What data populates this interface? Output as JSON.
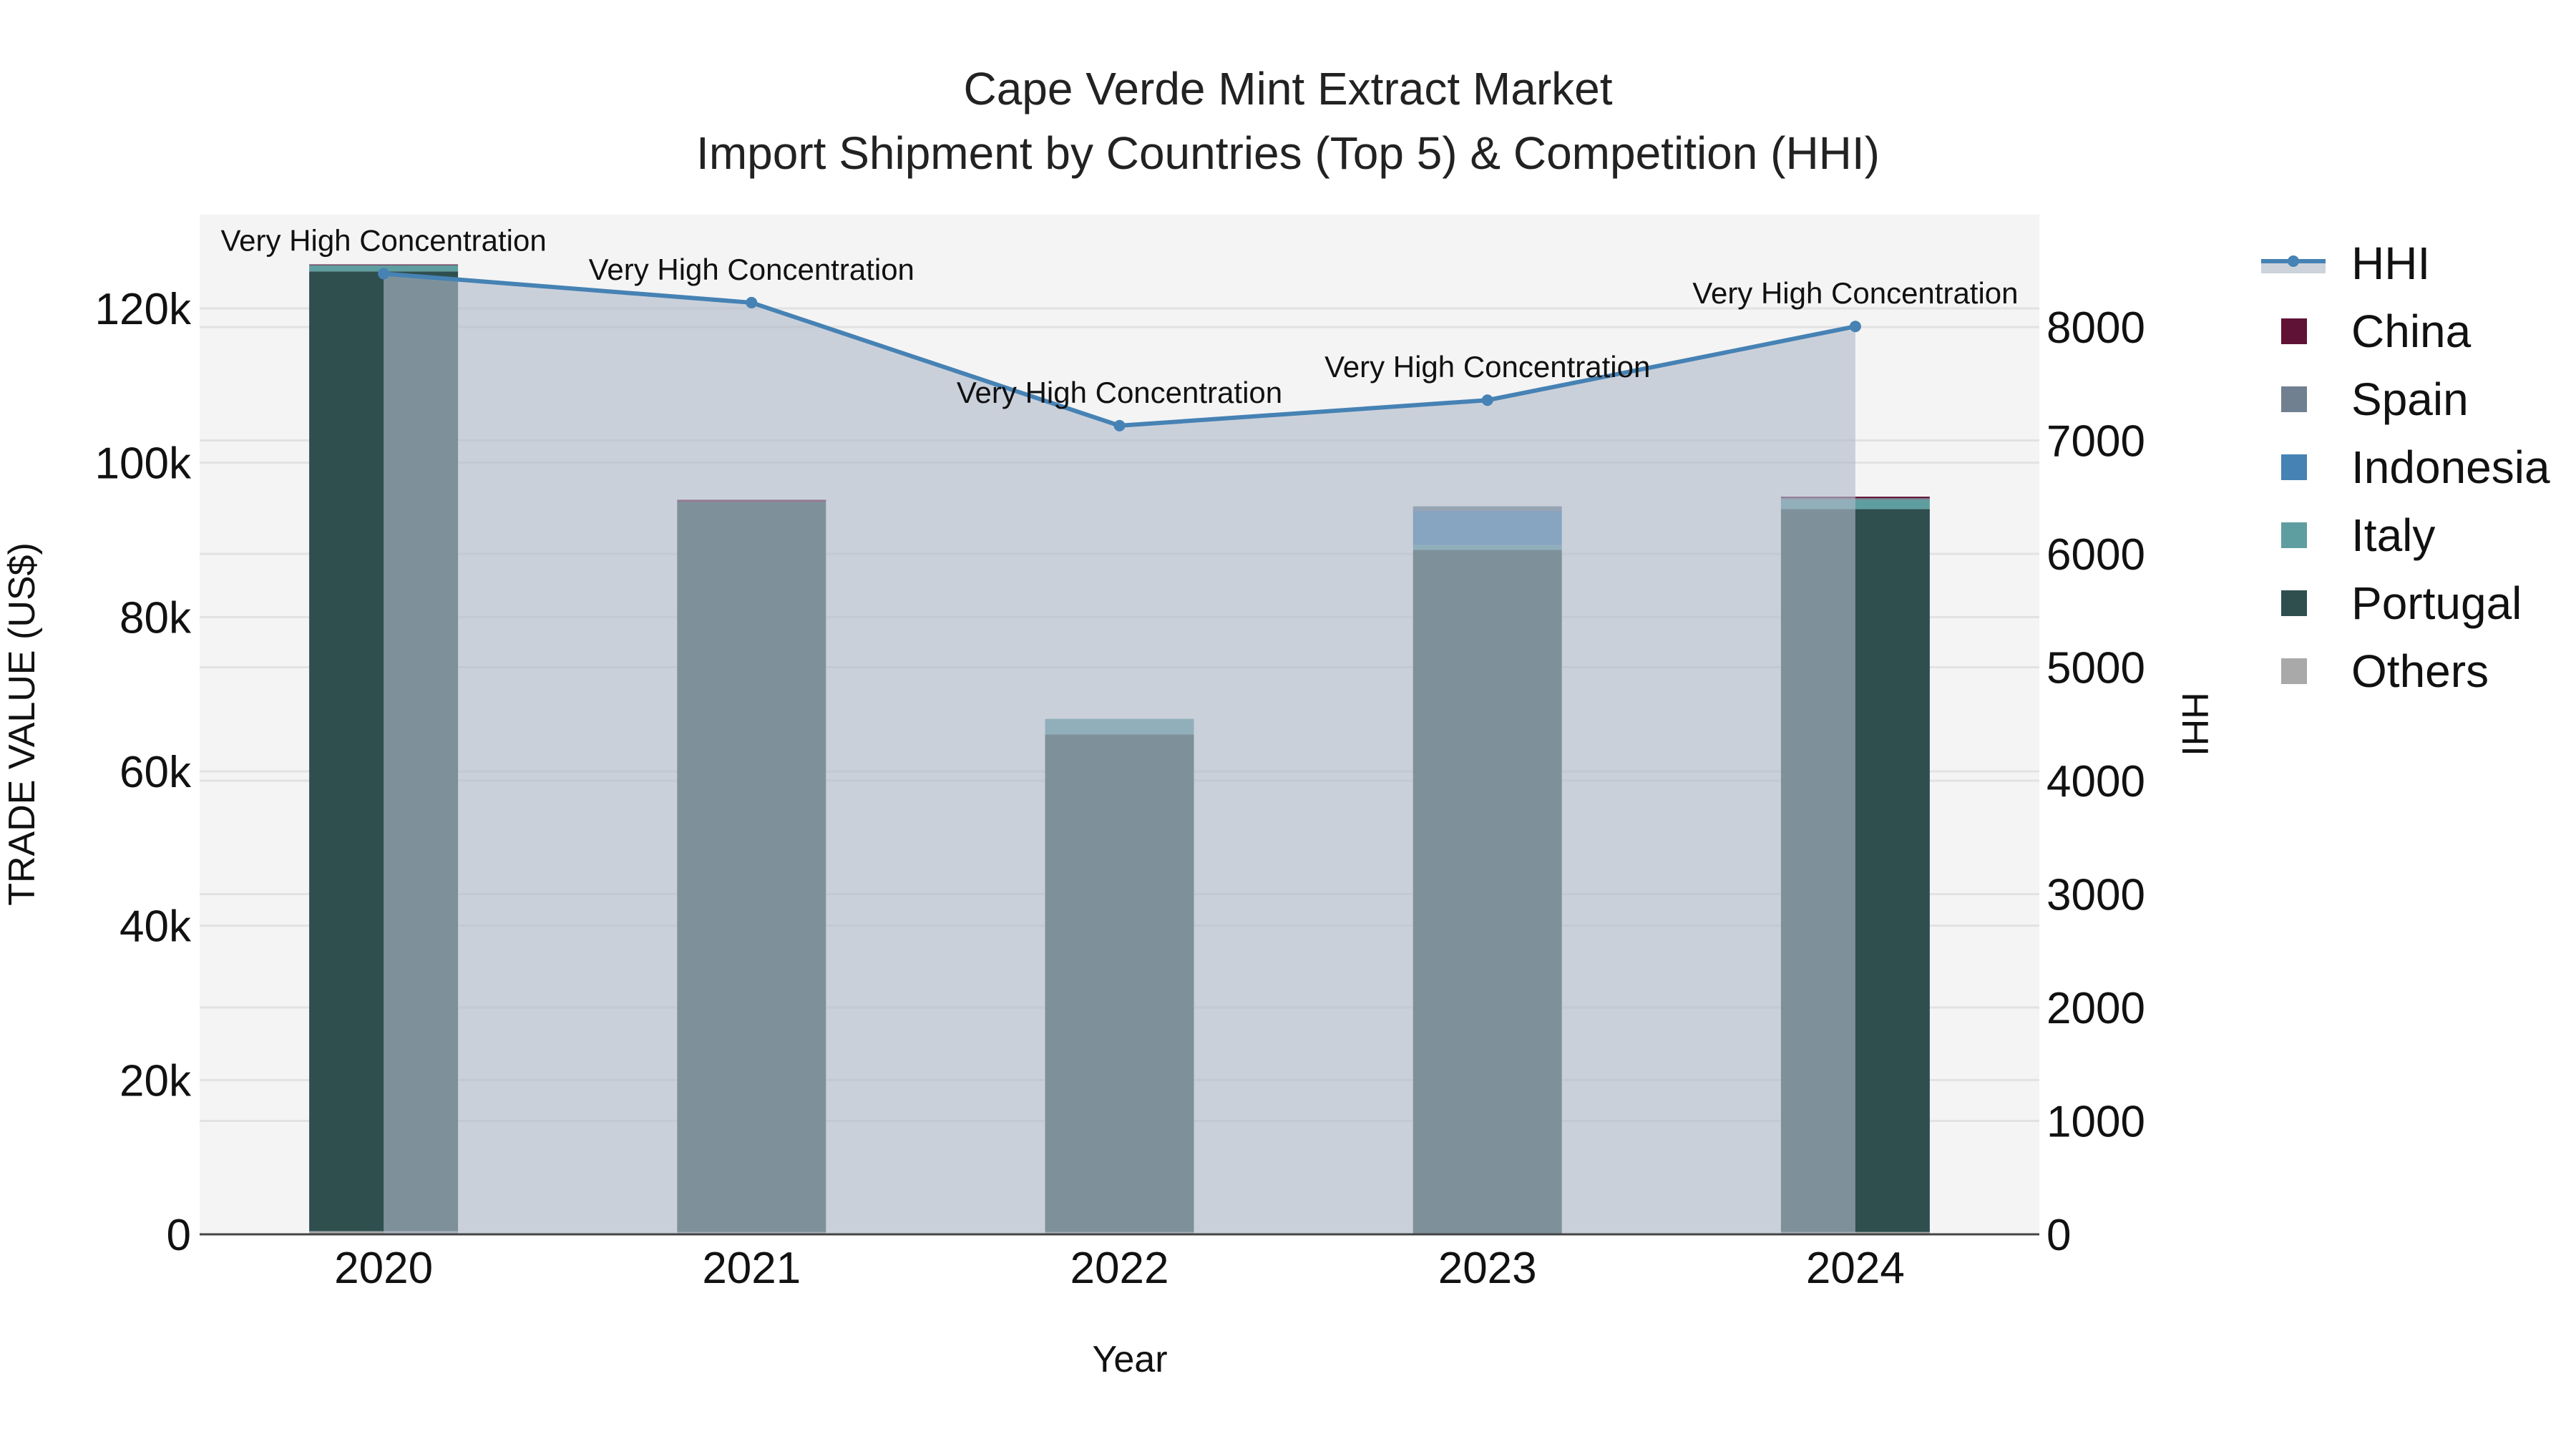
{
  "title": {
    "line1": "Cape Verde Mint Extract Market",
    "line2": "Import Shipment by Countries (Top 5) & Competition (HHI)"
  },
  "legend": {
    "items": [
      {
        "name": "HHI",
        "kind": "line",
        "color": "#4682b4"
      },
      {
        "name": "China",
        "kind": "box",
        "color": "#601236"
      },
      {
        "name": "Spain",
        "kind": "box",
        "color": "#708090"
      },
      {
        "name": "Indonesia",
        "kind": "box",
        "color": "#4682b4"
      },
      {
        "name": "Italy",
        "kind": "box",
        "color": "#5f9ea0"
      },
      {
        "name": "Portugal",
        "kind": "box",
        "color": "#2f4f4f"
      },
      {
        "name": "Others",
        "kind": "box",
        "color": "#a9a9a9"
      }
    ]
  },
  "chart_data": {
    "type": "bar",
    "subtype": "stacked bar + line (dual axis)",
    "title": "Cape Verde Mint Extract Market — Import Shipment by Countries (Top 5) & Competition (HHI)",
    "xlabel": "Year",
    "ylabel": "TRADE VALUE (US$)",
    "y2label": "HHI",
    "categories": [
      "2020",
      "2021",
      "2022",
      "2023",
      "2024"
    ],
    "ylim": [
      0,
      132000
    ],
    "y_ticks": [
      0,
      20000,
      40000,
      60000,
      80000,
      100000,
      120000
    ],
    "y_tick_labels": [
      "0",
      "20k",
      "40k",
      "60k",
      "80k",
      "100k",
      "120k"
    ],
    "y2lim": [
      0,
      8800
    ],
    "y2_ticks": [
      0,
      1000,
      2000,
      3000,
      4000,
      5000,
      6000,
      7000,
      8000
    ],
    "y2_tick_labels": [
      "0",
      "1000",
      "2000",
      "3000",
      "4000",
      "5000",
      "6000",
      "7000",
      "8000"
    ],
    "grid": true,
    "legend_position": "right",
    "series": [
      {
        "name": "Others",
        "color": "#a9a9a9",
        "values": [
          400,
          300,
          300,
          0,
          300
        ]
      },
      {
        "name": "Portugal",
        "color": "#2f4f4f",
        "values": [
          124400,
          94600,
          64500,
          88700,
          93700
        ]
      },
      {
        "name": "Italy",
        "color": "#5f9ea0",
        "values": [
          800,
          0,
          2000,
          650,
          1200
        ]
      },
      {
        "name": "Indonesia",
        "color": "#4682b4",
        "values": [
          0,
          0,
          0,
          4400,
          0
        ]
      },
      {
        "name": "Spain",
        "color": "#708090",
        "values": [
          0,
          0,
          0,
          600,
          200
        ]
      },
      {
        "name": "China",
        "color": "#601236",
        "values": [
          100,
          300,
          0,
          0,
          200
        ]
      }
    ],
    "line_series": {
      "name": "HHI",
      "axis": "y2",
      "color": "#4682b4",
      "fill": "tozeroy",
      "values": [
        8470,
        8215,
        7130,
        7355,
        8005
      ],
      "annotations": [
        "Very High Concentration",
        "Very High Concentration",
        "Very High Concentration",
        "Very High Concentration",
        "Very High Concentration"
      ]
    }
  }
}
